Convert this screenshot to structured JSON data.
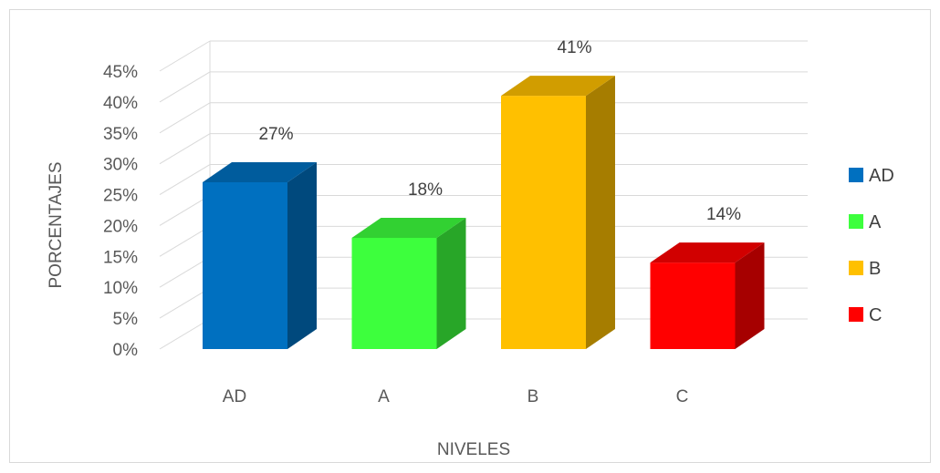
{
  "chart_data": {
    "type": "bar",
    "categories": [
      "AD",
      "A",
      "B",
      "C"
    ],
    "values": [
      27,
      18,
      41,
      14
    ],
    "value_labels": [
      "27%",
      "18%",
      "41%",
      "14%"
    ],
    "colors": [
      "#0070C0",
      "#3DFF3D",
      "#FFC000",
      "#FF0000"
    ],
    "title": "",
    "xlabel": "NIVELES",
    "ylabel": "PORCENTAJES",
    "ylim": [
      0,
      45
    ],
    "ytick_values": [
      0,
      5,
      10,
      15,
      20,
      25,
      30,
      35,
      40,
      45
    ],
    "ytick_labels": [
      "0%",
      "5%",
      "10%",
      "15%",
      "20%",
      "25%",
      "30%",
      "35%",
      "40%",
      "45%"
    ],
    "grid": true,
    "style": "3d",
    "legend": {
      "position": "right",
      "entries": [
        "AD",
        "A",
        "B",
        "C"
      ]
    }
  }
}
